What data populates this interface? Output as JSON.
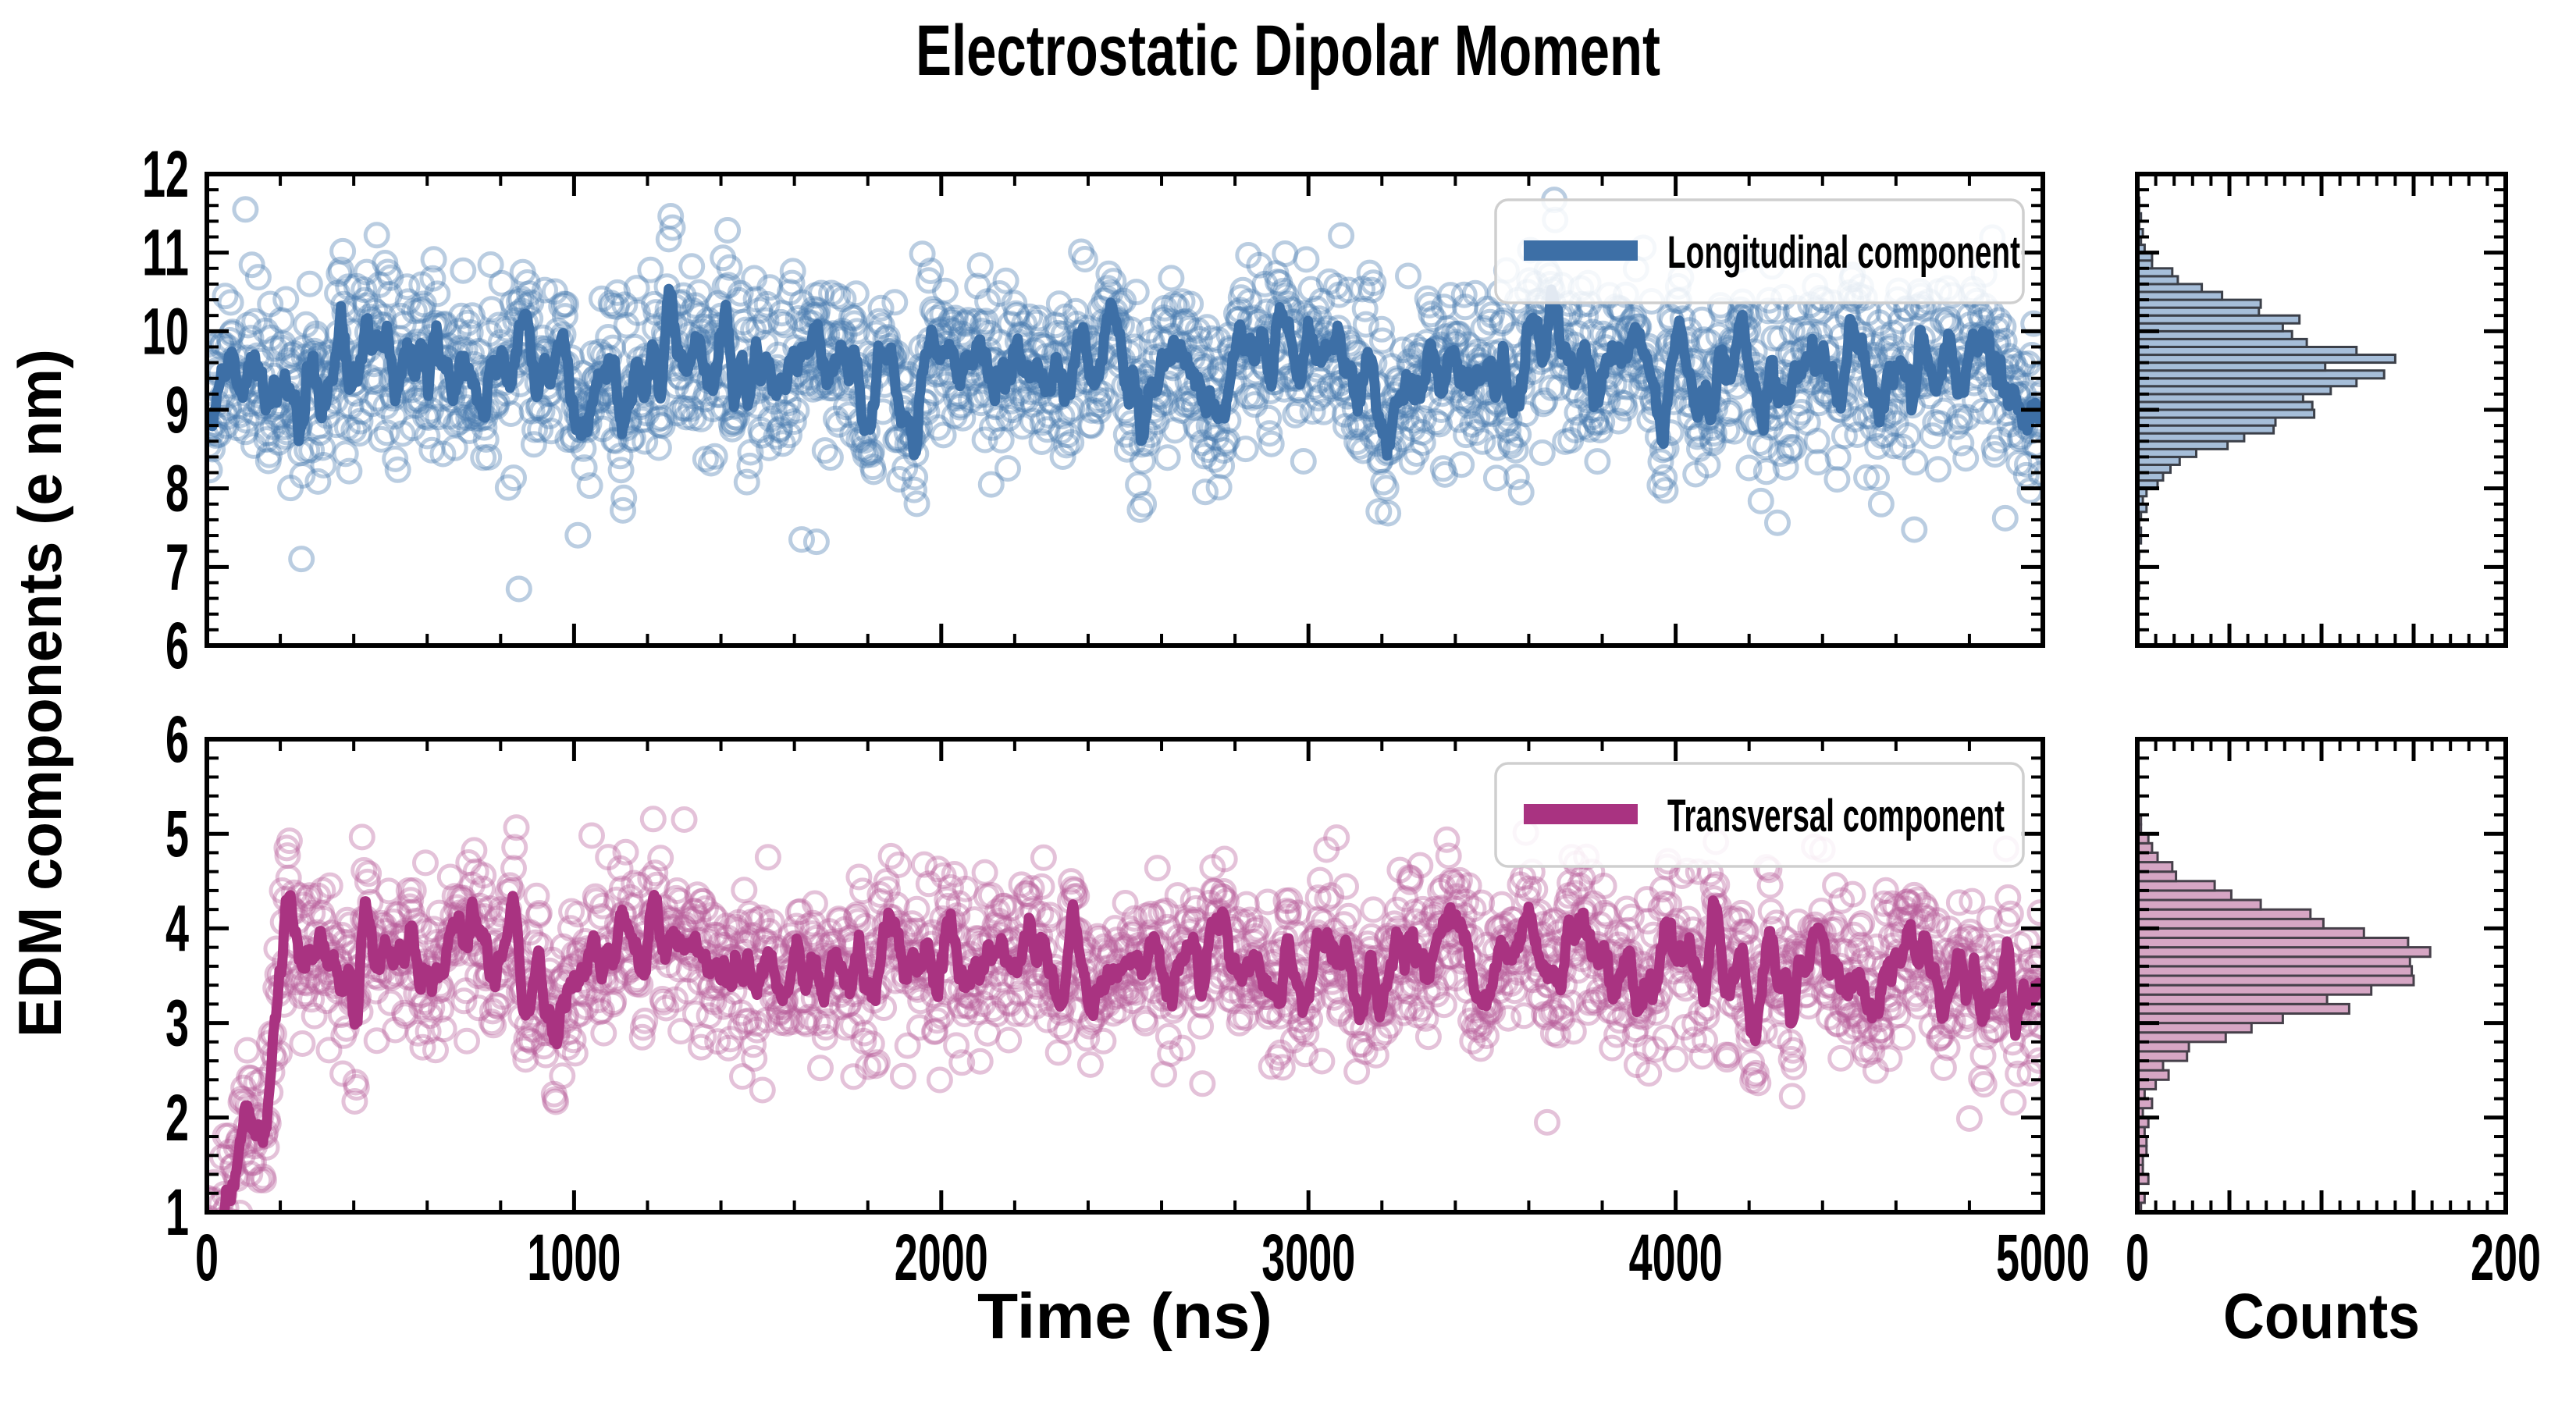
{
  "figure": {
    "title": "Electrostatic Dipolar Moment",
    "ylabel": "EDM components (e nm)",
    "xlabel": "Time (ns)",
    "hist_xlabel": "Counts",
    "background": "#ffffff",
    "axis_color": "#000000",
    "legend_border_color": "#cfcfcf"
  },
  "chart_data": [
    {
      "type": "scatter",
      "name": "longitudinal",
      "legend_label": "Longitudinal component",
      "line_color": "#3d6fa6",
      "scatter_color": "#4a7bb0",
      "scatter_opacity": 0.38,
      "marker": "open-circle",
      "line_description": "running average of scatter samples",
      "x": {
        "min": 0,
        "max": 5000,
        "major_ticks": [
          0,
          1000,
          2000,
          3000,
          4000,
          5000
        ],
        "major_tick_labels": [
          "0",
          "1000",
          "2000",
          "3000",
          "4000",
          "5000"
        ],
        "minor_step": 200,
        "show_tick_labels": false
      },
      "y": {
        "min": 6,
        "max": 12,
        "major_ticks": [
          6,
          7,
          8,
          9,
          10,
          11,
          12
        ],
        "major_tick_labels": [
          "6",
          "7",
          "8",
          "9",
          "10",
          "11",
          "12"
        ],
        "minor_step": 0.2,
        "show_tick_labels": true
      },
      "hist": {
        "fill": "#a6bed9",
        "edge": "#3c4049",
        "bin_width": 0.1,
        "x_min": 0,
        "x_max": 200,
        "x_major_ticks": [
          0,
          50,
          100,
          150,
          200
        ],
        "x_minor_step": 10,
        "labeled_ticks": [
          0,
          200
        ],
        "labeled_tick_labels": [
          "0",
          "200"
        ],
        "peak_counts_approx": 140
      },
      "process": {
        "seed": 1234567,
        "n": 2000,
        "t_max": 5000,
        "segments": [
          [
            0,
            5000,
            9.52,
            9.48
          ]
        ],
        "ar_coef": 0.88,
        "ar_sigma": 0.165,
        "white_sigma": 0.55,
        "smooth_window": 9,
        "mean": 9.5,
        "std": 0.65
      },
      "outliers": [
        [
          105,
          11.55
        ],
        [
          850,
          6.72
        ],
        [
          1620,
          7.35
        ],
        [
          1660,
          7.32
        ]
      ]
    },
    {
      "type": "scatter",
      "name": "transversal",
      "legend_label": "Transversal component",
      "line_color": "#a93381",
      "scatter_color": "#b75f9b",
      "scatter_opacity": 0.38,
      "marker": "open-circle",
      "line_description": "running average; equilibration jump from ~2 to ~3.7 e nm near t=180 ns",
      "x": {
        "min": 0,
        "max": 5000,
        "major_ticks": [
          0,
          1000,
          2000,
          3000,
          4000,
          5000
        ],
        "major_tick_labels": [
          "0",
          "1000",
          "2000",
          "3000",
          "4000",
          "5000"
        ],
        "minor_step": 200,
        "show_tick_labels": true
      },
      "y": {
        "min": 1,
        "max": 6,
        "major_ticks": [
          1,
          2,
          3,
          4,
          5,
          6
        ],
        "major_tick_labels": [
          "1",
          "2",
          "3",
          "4",
          "5",
          "6"
        ],
        "minor_step": 0.2,
        "show_tick_labels": true
      },
      "hist": {
        "fill": "#d6a6c4",
        "edge": "#46404a",
        "bin_width": 0.1,
        "x_min": 0,
        "x_max": 200,
        "x_major_ticks": [
          0,
          50,
          100,
          150,
          200
        ],
        "x_minor_step": 10,
        "labeled_ticks": [
          0,
          200
        ],
        "labeled_tick_labels": [
          "0",
          "200"
        ],
        "peak_counts_approx": 181
      },
      "process": {
        "seed": 7654321,
        "n": 2000,
        "t_max": 5000,
        "segments": [
          [
            0,
            160,
            0.95,
            2.08
          ],
          [
            160,
            205,
            2.08,
            3.78
          ],
          [
            205,
            5000,
            3.7,
            3.58
          ]
        ],
        "ar_coef": 0.88,
        "ar_sigma": 0.125,
        "white_sigma": 0.4,
        "smooth_window": 9,
        "mean_plateau": 3.65,
        "std_plateau": 0.45
      },
      "outliers": [
        [
          1300,
          5.15
        ],
        [
          3650,
          1.95
        ]
      ]
    }
  ]
}
